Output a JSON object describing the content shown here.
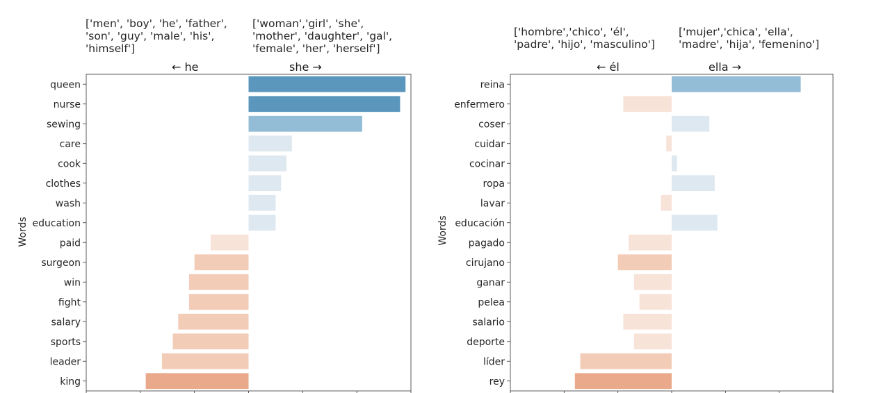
{
  "chart_data": [
    {
      "type": "bar",
      "orientation": "horizontal",
      "ylabel": "Words",
      "left_group_label": "← he",
      "right_group_label": "she →",
      "left_group_words": "['men', 'boy', 'he', 'father',\n'son', 'guy', 'male', 'his',\n'himself']",
      "right_group_words": "['woman','girl', 'she',\n'mother', 'daughter', 'gal',\n'female', 'her', 'herself']",
      "categories": [
        "queen",
        "nurse",
        "sewing",
        "care",
        "cook",
        "clothes",
        "wash",
        "education",
        "paid",
        "surgeon",
        "win",
        "fight",
        "salary",
        "sports",
        "leader",
        "king"
      ],
      "values": [
        0.58,
        0.56,
        0.42,
        0.16,
        0.14,
        0.12,
        0.1,
        0.1,
        -0.14,
        -0.2,
        -0.22,
        -0.22,
        -0.26,
        -0.28,
        -0.32,
        -0.38
      ],
      "xlim": [
        -0.6,
        0.6
      ]
    },
    {
      "type": "bar",
      "orientation": "horizontal",
      "ylabel": "Words",
      "left_group_label": "← él",
      "right_group_label": "ella →",
      "left_group_words": "['hombre','chico', 'él',\n'padre', 'hijo', 'masculino']",
      "right_group_words": "['mujer','chica', 'ella',\n'madre', 'hija', 'femenino']",
      "categories": [
        "reina",
        "enfermero",
        "coser",
        "cuidar",
        "cocinar",
        "ropa",
        "lavar",
        "educación",
        "pagado",
        "cirujano",
        "ganar",
        "pelea",
        "salario",
        "deporte",
        "líder",
        "rey"
      ],
      "values": [
        0.48,
        -0.18,
        0.14,
        -0.02,
        0.02,
        0.16,
        -0.04,
        0.17,
        -0.16,
        -0.2,
        -0.14,
        -0.12,
        -0.18,
        -0.14,
        -0.34,
        -0.36
      ],
      "xlim": [
        -0.6,
        0.6
      ]
    }
  ],
  "colors": {
    "pos_dark": "#5b97bd",
    "pos_mid": "#93bdd6",
    "pos_light": "#dde8f0",
    "neg_light": "#f8e3d9",
    "neg_mid": "#f3ccb8",
    "neg_dark": "#eaa98a"
  }
}
